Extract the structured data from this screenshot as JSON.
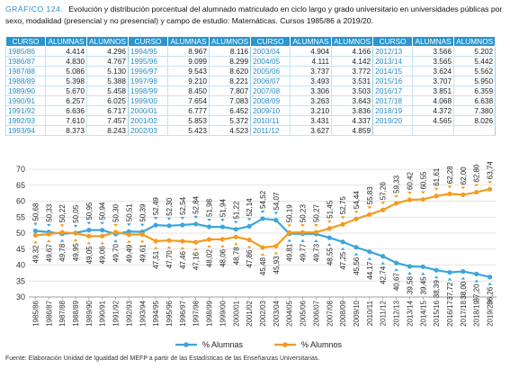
{
  "header": {
    "label": "GRÁFICO 124.",
    "text": "Evolución y distribución porcentual del alumnado matriculado en ciclo largo y grado universitario en universidades públicas por sexo, modalidad (presencial y no presencial) y campo de estudio: Matemáticas. Cursos 1985/86 a 2019/20."
  },
  "table": {
    "columns": [
      "CURSO",
      "ALUMNAS",
      "ALUMNOS",
      "CURSO",
      "ALUMNAS",
      "ALUMNOS",
      "CURSO",
      "ALUMNAS",
      "ALUMNOS",
      "CURSO",
      "ALUMNAS",
      "ALUMNOS"
    ],
    "rows": [
      [
        "1985/86",
        "4.414",
        "4.296",
        "1994/95",
        "8.967",
        "8.116",
        "2003/04",
        "4.904",
        "4.166",
        "2012/13",
        "3.566",
        "5.202"
      ],
      [
        "1986/87",
        "4.830",
        "4.767",
        "1995/96",
        "9.099",
        "8.299",
        "2004/05",
        "4.111",
        "4.142",
        "2013/14",
        "3.565",
        "5.442"
      ],
      [
        "1987/88",
        "5.086",
        "5.130",
        "1996/97",
        "9.543",
        "8.620",
        "2005/06",
        "3.737",
        "3.772",
        "2014/15",
        "3.624",
        "5.562"
      ],
      [
        "1988/89",
        "5.398",
        "5.388",
        "1997/98",
        "9.210",
        "8.221",
        "2006/07",
        "3.493",
        "3.531",
        "2015/16",
        "3.707",
        "5.950"
      ],
      [
        "1989/90",
        "5.670",
        "5.458",
        "1998/99",
        "8.450",
        "7.807",
        "2007/08",
        "3.306",
        "3.503",
        "2016/17",
        "3.851",
        "6.359"
      ],
      [
        "1990/91",
        "6.257",
        "6.025",
        "1999/00",
        "7.654",
        "7.083",
        "2008/09",
        "3.263",
        "3.643",
        "2017/18",
        "4.068",
        "6.638"
      ],
      [
        "1991/92",
        "6.636",
        "6.717",
        "2000/01",
        "6.777",
        "6.452",
        "2009/10",
        "3.210",
        "3.836",
        "2018/19",
        "4.372",
        "7.380"
      ],
      [
        "1992/93",
        "7.610",
        "7.457",
        "2001/02",
        "5.853",
        "5.372",
        "2010/11",
        "3.431",
        "4.337",
        "2019/20",
        "4.565",
        "8.026"
      ],
      [
        "1993/94",
        "8.373",
        "8.243",
        "2002/03",
        "5.423",
        "4.523",
        "2011/12",
        "3.627",
        "4.859",
        "",
        "",
        ""
      ]
    ]
  },
  "chart_data": {
    "type": "line",
    "categories": [
      "1985/86",
      "1986/87",
      "1987/88",
      "1988/89",
      "1989/90",
      "1990/91",
      "1991/92",
      "1992/93",
      "1993/94",
      "1994/95",
      "1995/96",
      "1996/97",
      "1997/98",
      "1998/99",
      "1999/00",
      "2000/01",
      "2001/02",
      "2002/03",
      "2003/04",
      "2004/05",
      "2005/06",
      "2006/07",
      "2007/08",
      "2008/09",
      "2009/10",
      "2010/11",
      "2011/12",
      "2012/13",
      "2013/14",
      "2014/15",
      "2015/16",
      "2016/17",
      "2017/18",
      "2018/19",
      "2019/20"
    ],
    "series": [
      {
        "name": "% Alumnas",
        "color": "#3aa6dc",
        "values": [
          50.68,
          50.33,
          49.78,
          50.05,
          50.95,
          50.94,
          49.7,
          50.51,
          50.39,
          52.49,
          52.3,
          52.54,
          52.84,
          51.98,
          51.94,
          51.22,
          52.14,
          54.52,
          54.07,
          49.81,
          49.77,
          49.73,
          48.55,
          47.25,
          45.56,
          44.17,
          42.74,
          40.67,
          39.58,
          39.45,
          38.39,
          37.72,
          38.0,
          37.2,
          36.26
        ],
        "labels": [
          "50,68",
          "50,33",
          "49,78",
          "50,05",
          "50,95",
          "50,94",
          "49,70",
          "50,51",
          "50,39",
          "52,49",
          "52,30",
          "52,54",
          "52,84",
          "51,98",
          "51,94",
          "51,22",
          "52,14",
          "54,52",
          "54,07",
          "49,81",
          "49,77",
          "49,73",
          "48,55",
          "47,25",
          "45,56",
          "44,17",
          "42,74",
          "40,67",
          "39,58",
          "39,45",
          "38,39",
          "37,72",
          "38,00",
          "37,20",
          "36,26"
        ]
      },
      {
        "name": "% Alumnos",
        "color": "#f39c1e",
        "values": [
          49.32,
          49.67,
          50.22,
          49.95,
          49.05,
          49.06,
          50.3,
          49.49,
          49.61,
          47.51,
          47.7,
          47.46,
          47.16,
          48.02,
          48.06,
          48.78,
          47.86,
          45.48,
          45.93,
          50.19,
          50.23,
          50.27,
          51.45,
          52.75,
          54.44,
          55.83,
          57.26,
          59.33,
          60.42,
          60.55,
          61.61,
          62.28,
          62.0,
          62.8,
          63.74
        ],
        "labels": [
          "49,32",
          "49,67",
          "50,22",
          "49,95",
          "49,05",
          "49,06",
          "50,30",
          "49,49",
          "49,61",
          "47,51",
          "47,70",
          "47,46",
          "47,16",
          "48,02",
          "48,06",
          "48,78",
          "47,86",
          "45,48",
          "45,93",
          "50,19",
          "50,23",
          "50,27",
          "51,45",
          "52,75",
          "54,44",
          "55,83",
          "57,26",
          "59,33",
          "60,42",
          "60,55",
          "61,61",
          "62,28",
          "62,00",
          "62,80",
          "63,74"
        ]
      }
    ],
    "ylim": [
      30,
      70
    ],
    "yticks": [
      30,
      35,
      40,
      45,
      50,
      55,
      60,
      65,
      70
    ],
    "grid": true,
    "legend": "bottom",
    "xlabel": "",
    "ylabel": ""
  },
  "footer": {
    "source": "Fuente: Elaboración Unidad de Igualdad del MEFP a partir de las Estadísticas de las Enseñanzas Universitarias."
  }
}
